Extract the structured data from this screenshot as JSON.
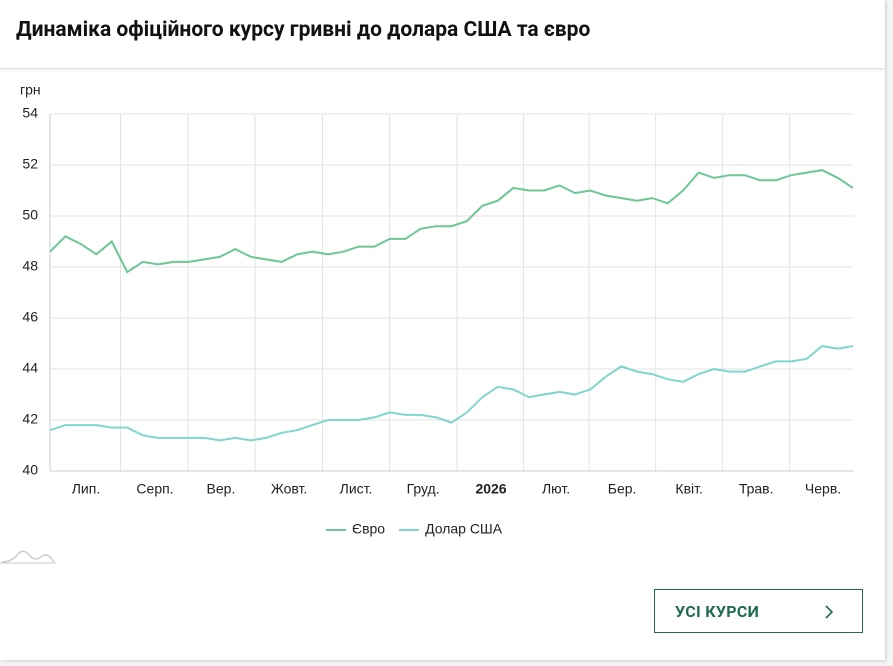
{
  "header": {
    "title": "Динаміка офіційного курсу гривні до долара США та євро"
  },
  "chart_data": {
    "type": "line",
    "ylabel": "грн",
    "ylim": [
      40,
      54
    ],
    "yticks": [
      40,
      42,
      44,
      46,
      48,
      50,
      52,
      54
    ],
    "xlim": [
      0,
      52
    ],
    "xticks": [
      {
        "value": 2.33,
        "label": "Лип."
      },
      {
        "value": 6.8,
        "label": "Серп."
      },
      {
        "value": 11.07,
        "label": "Вер."
      },
      {
        "value": 15.48,
        "label": "Жовт."
      },
      {
        "value": 19.82,
        "label": "Лист."
      },
      {
        "value": 24.16,
        "label": "Груд."
      },
      {
        "value": 28.56,
        "label": "2026"
      },
      {
        "value": 32.77,
        "label": "Лют."
      },
      {
        "value": 37.05,
        "label": "Бер."
      },
      {
        "value": 41.39,
        "label": "Квіт."
      },
      {
        "value": 45.73,
        "label": "Трав."
      },
      {
        "value": 50.06,
        "label": "Черв."
      }
    ],
    "grid": true,
    "legend": "bottom",
    "series": [
      {
        "name": "Євро",
        "color": "#6cc795",
        "values": [
          48.6,
          49.2,
          48.9,
          48.5,
          49.0,
          47.8,
          48.2,
          48.1,
          48.2,
          48.2,
          48.3,
          48.4,
          48.7,
          48.4,
          48.3,
          48.2,
          48.5,
          48.6,
          48.5,
          48.6,
          48.8,
          48.8,
          49.1,
          49.1,
          49.5,
          49.6,
          49.6,
          49.8,
          50.4,
          50.6,
          51.1,
          51.0,
          51.0,
          51.2,
          50.9,
          51.0,
          50.8,
          50.7,
          50.6,
          50.7,
          50.5,
          51.0,
          51.7,
          51.5,
          51.6,
          51.6,
          51.4,
          51.4,
          51.6,
          51.7,
          51.8,
          51.5,
          51.1
        ]
      },
      {
        "name": "Долар США",
        "color": "#7fd6cb",
        "values": [
          41.6,
          41.8,
          41.8,
          41.8,
          41.7,
          41.7,
          41.4,
          41.3,
          41.3,
          41.3,
          41.3,
          41.2,
          41.3,
          41.2,
          41.3,
          41.5,
          41.6,
          41.8,
          42.0,
          42.0,
          42.0,
          42.1,
          42.3,
          42.2,
          42.2,
          42.1,
          41.9,
          42.3,
          42.9,
          43.3,
          43.2,
          42.9,
          43.0,
          43.1,
          43.0,
          43.2,
          43.7,
          44.1,
          43.9,
          43.8,
          43.6,
          43.5,
          43.8,
          44.0,
          43.9,
          43.9,
          44.1,
          44.3,
          44.3,
          44.4,
          44.9,
          44.8,
          44.9
        ]
      }
    ]
  },
  "button": {
    "label": "УСІ КУРСИ"
  }
}
